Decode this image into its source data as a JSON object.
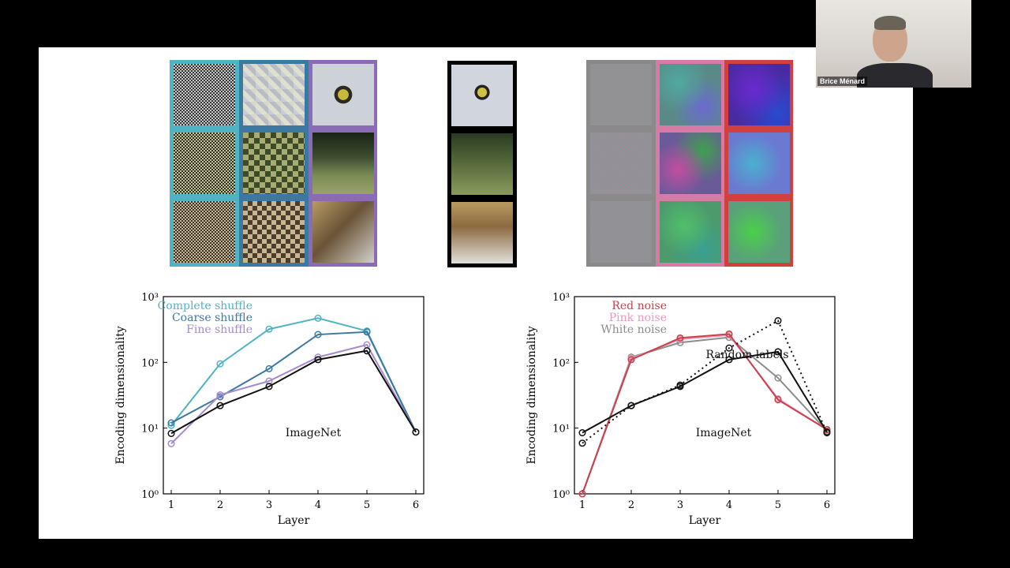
{
  "webcam": {
    "participant_name": "Brice Ménard"
  },
  "left_panel_colors": {
    "complete": "#4fb3c4",
    "coarse": "#3d78a3",
    "fine": "#8b6bb6"
  },
  "center_panel_color": "#000000",
  "right_panel_colors": {
    "white": "#8a8a8a",
    "pink": "#d67aa6",
    "red": "#d0403f"
  },
  "chart_data": [
    {
      "type": "line",
      "xlabel": "Layer",
      "ylabel": "Encoding dimensionality",
      "x": [
        1,
        2,
        3,
        4,
        5,
        6
      ],
      "xticks": [
        "1",
        "2",
        "3",
        "4",
        "5",
        "6"
      ],
      "yticks": [
        "10⁰",
        "10¹",
        "10²",
        "10³"
      ],
      "yscale": "log",
      "ylim": [
        1,
        1000
      ],
      "series": [
        {
          "name": "Complete shuffle",
          "color": "#4fb3c4",
          "values": [
            11,
            95,
            320,
            470,
            300,
            8.7
          ]
        },
        {
          "name": "Coarse shuffle",
          "color": "#3d78a3",
          "values": [
            12,
            30,
            80,
            265,
            290,
            8.7
          ]
        },
        {
          "name": "Fine shuffle",
          "color": "#a48bcf",
          "values": [
            5.8,
            32,
            52,
            120,
            185,
            8.7
          ]
        },
        {
          "name": "ImageNet",
          "color": "#111111",
          "values": [
            8.3,
            22,
            43,
            110,
            150,
            8.7
          ]
        }
      ],
      "legend": [
        "Complete shuffle",
        "Coarse shuffle",
        "Fine shuffle"
      ],
      "annotation": "ImageNet"
    },
    {
      "type": "line",
      "xlabel": "Layer",
      "ylabel": "Encoding dimensionality",
      "x": [
        1,
        2,
        3,
        4,
        5,
        6
      ],
      "xticks": [
        "1",
        "2",
        "3",
        "4",
        "5",
        "6"
      ],
      "yticks": [
        "10⁰",
        "10¹",
        "10²",
        "10³"
      ],
      "yscale": "log",
      "ylim": [
        1,
        1000
      ],
      "series": [
        {
          "name": "White noise",
          "color": "#8c8c8c",
          "values": [
            1,
            120,
            200,
            240,
            58,
            9
          ]
        },
        {
          "name": "Pink noise",
          "color": "#e39bbc",
          "values": [
            1,
            115,
            225,
            260,
            28,
            9.5
          ]
        },
        {
          "name": "Red noise",
          "color": "#c8414b",
          "values": [
            1,
            110,
            235,
            270,
            27,
            9.5
          ]
        },
        {
          "name": "Random labels",
          "color": "#111111",
          "dashed": true,
          "values": [
            5.9,
            22,
            45,
            165,
            430,
            8.5
          ]
        },
        {
          "name": "ImageNet",
          "color": "#111111",
          "values": [
            8.5,
            22,
            43,
            110,
            145,
            8.7
          ]
        }
      ],
      "legend": [
        "Red noise",
        "Pink noise",
        "White noise"
      ],
      "annotation": "Random labels",
      "annotation2": "ImageNet"
    }
  ]
}
